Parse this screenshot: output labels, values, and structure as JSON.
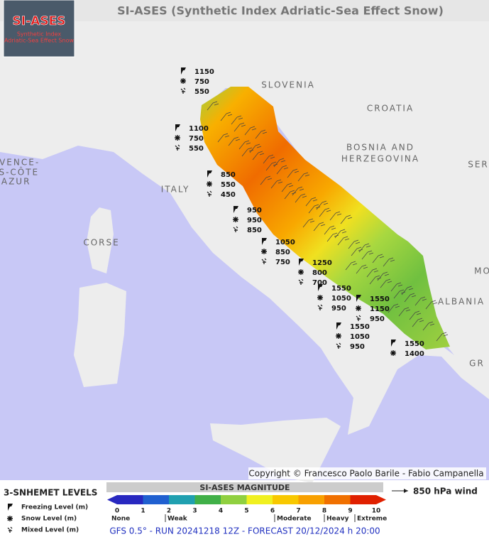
{
  "header": {
    "title": "SI-ASES (Synthetic Index Adriatic-Sea Effect Snow)",
    "logo": {
      "name": "SI-ASES",
      "line1": "Synthetic Index",
      "line2": "Adriatic-Sea Effect Snow"
    }
  },
  "map": {
    "labels": [
      "SLOVENIA",
      "CROATIA",
      "BOSNIA AND",
      "HERZEGOVINA",
      "ITALY",
      "CORSE",
      "ALBANIA",
      "SER",
      "MO",
      "GR",
      "OVENCE-",
      "ES-CÔTE",
      "'AZUR"
    ],
    "stations": [
      {
        "freezing": 1150,
        "snow": 750,
        "mixed": 550
      },
      {
        "freezing": 1100,
        "snow": 750,
        "mixed": 550
      },
      {
        "freezing": 850,
        "snow": 550,
        "mixed": 450
      },
      {
        "freezing": 950,
        "snow": 950,
        "mixed": 850
      },
      {
        "freezing": 1050,
        "snow": 850,
        "mixed": 750
      },
      {
        "freezing": 1250,
        "snow": 800,
        "mixed": 700
      },
      {
        "freezing": 1550,
        "snow": 1050,
        "mixed": 950
      },
      {
        "freezing": 1550,
        "snow": 1150,
        "mixed": 950
      },
      {
        "freezing": 1550,
        "snow": 1050,
        "mixed": 950
      },
      {
        "freezing": 1550,
        "snow": 1400
      }
    ],
    "copyright": "Copyright © Francesco Paolo Barile - Fabio Campanella"
  },
  "legend": {
    "levels_title": "3-SNHEMET LEVELS",
    "levels": [
      "Freezing Level (m)",
      "Snow Level (m)",
      "Mixed Level (m)"
    ],
    "magnitude_title": "SI-ASES MAGNITUDE",
    "magnitude_ticks": [
      0,
      1,
      2,
      3,
      4,
      5,
      6,
      7,
      8,
      9,
      10
    ],
    "magnitude_classes": [
      "None",
      "Weak",
      "Moderate",
      "Heavy",
      "Extreme"
    ],
    "wind": "850 hPa wind"
  },
  "footer": "GFS 0.5° - RUN 20241218 12Z - FORECAST 20/12/2024 h 20:00"
}
